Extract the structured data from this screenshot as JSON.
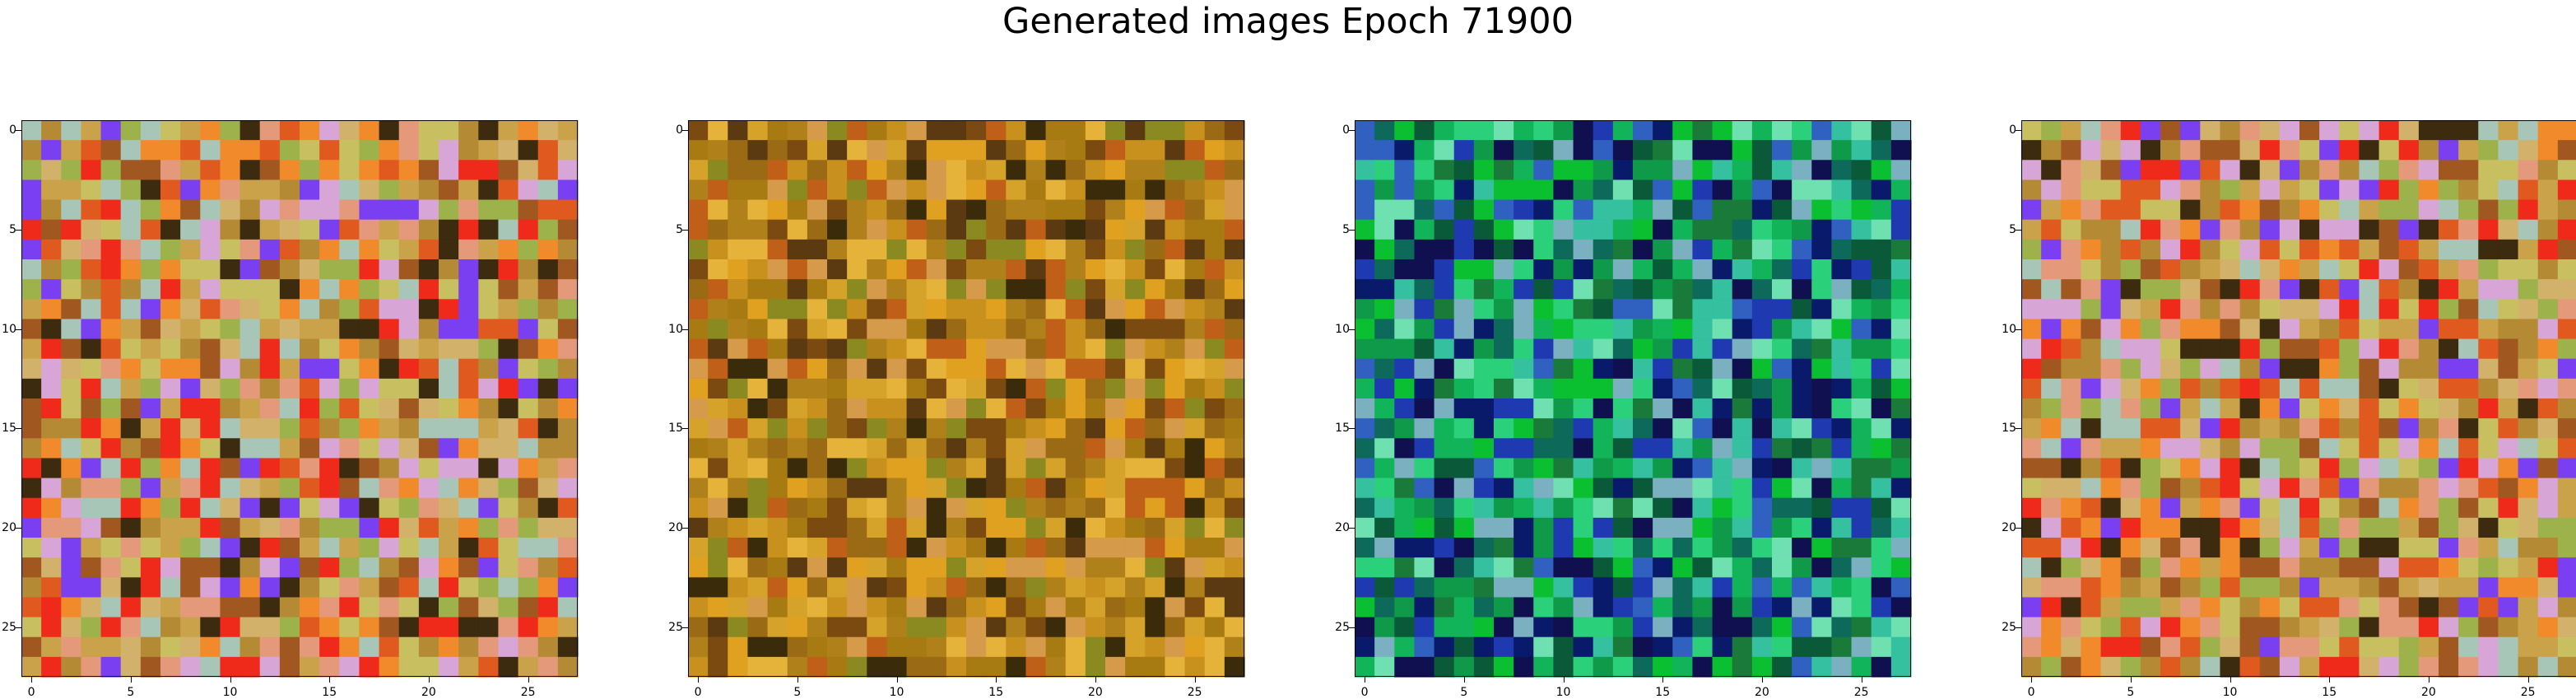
{
  "figure": {
    "title": "Generated images Epoch 71900"
  },
  "panels": [
    {
      "name": "generated-image-1",
      "palette": [
        "#c9a24a",
        "#b58a34",
        "#d2b26a",
        "#e05a1f",
        "#ef2a1a",
        "#f08a2b",
        "#a7c6b8",
        "#d7a6d7",
        "#7a3ff0",
        "#c8c060",
        "#a05820",
        "#3d2b10",
        "#e49a7a",
        "#9db24a"
      ]
    },
    {
      "name": "generated-image-2",
      "palette": [
        "#c8901c",
        "#b0801a",
        "#d6a32a",
        "#9a6a14",
        "#a77a12",
        "#e5b23a",
        "#7a4a10",
        "#c06018",
        "#5b3a12",
        "#8a8a20",
        "#3a2b0a",
        "#d59a4a",
        "#e0a020"
      ]
    },
    {
      "name": "generated-image-3",
      "palette": [
        "#0f9a4a",
        "#12b45a",
        "#1a7a3a",
        "#2ad07a",
        "#0a5a3a",
        "#35c0a0",
        "#1f3ab0",
        "#0a1a6a",
        "#3060c0",
        "#0d6a5a",
        "#6fe0b0",
        "#0ac030",
        "#101050",
        "#7ab0c0"
      ]
    },
    {
      "name": "generated-image-4",
      "palette": [
        "#c9a24a",
        "#b58a34",
        "#d2b26a",
        "#e05a1f",
        "#ef2a1a",
        "#f08a2b",
        "#a7c6b8",
        "#d7a6d7",
        "#7a3ff0",
        "#c8c060",
        "#a05820",
        "#3d2b10",
        "#e49a7a",
        "#9db24a"
      ]
    }
  ],
  "axes": {
    "x_ticks": [
      "0",
      "5",
      "10",
      "15",
      "20",
      "25"
    ],
    "y_ticks": [
      "0",
      "5",
      "10",
      "15",
      "20",
      "25"
    ]
  }
}
